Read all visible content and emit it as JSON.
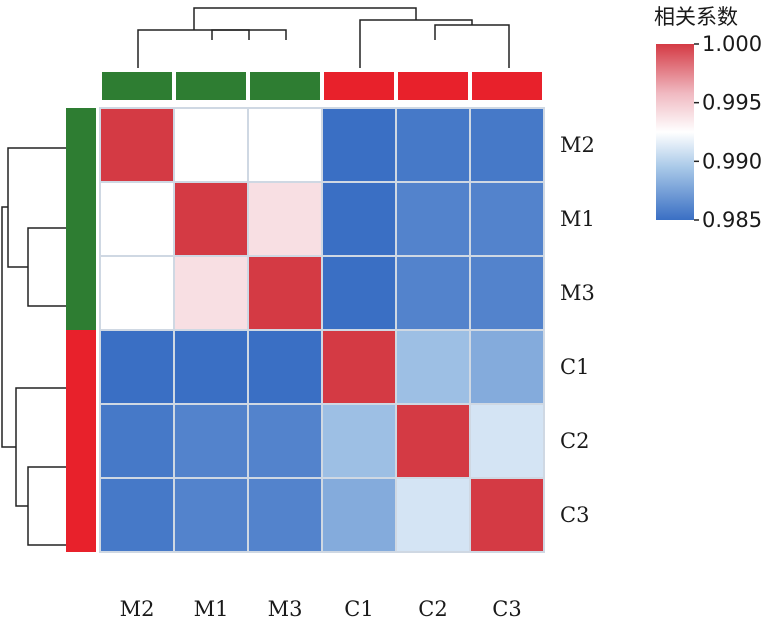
{
  "chart_data": {
    "type": "heatmap",
    "row_labels": [
      "M2",
      "M1",
      "M3",
      "C1",
      "C2",
      "C3"
    ],
    "col_labels": [
      "M2",
      "M1",
      "M3",
      "C1",
      "C2",
      "C3"
    ],
    "values": [
      [
        1.0,
        0.9925,
        0.9925,
        0.985,
        0.9855,
        0.9855
      ],
      [
        0.9925,
        1.0,
        0.994,
        0.985,
        0.986,
        0.986
      ],
      [
        0.9925,
        0.994,
        1.0,
        0.985,
        0.986,
        0.986
      ],
      [
        0.985,
        0.985,
        0.985,
        1.0,
        0.989,
        0.988
      ],
      [
        0.9855,
        0.986,
        0.986,
        0.989,
        1.0,
        0.991
      ],
      [
        0.9855,
        0.986,
        0.986,
        0.988,
        0.991,
        1.0
      ]
    ],
    "groups": [
      "M",
      "M",
      "M",
      "C",
      "C",
      "C"
    ],
    "group_colors": {
      "M": "#2e7d32",
      "C": "#e8212b"
    },
    "colorbar": {
      "title": "相关系数",
      "min": 0.985,
      "max": 1.0,
      "ticks": [
        "1.000",
        "0.995",
        "0.990",
        "0.985"
      ],
      "tick_values": [
        1.0,
        0.995,
        0.99,
        0.985
      ],
      "colors": [
        "#3a6fc4",
        "#c9dff0",
        "#ffffff",
        "#f2c4cb",
        "#d43a44"
      ],
      "placement": "top-right"
    },
    "dendrogram": "both"
  }
}
